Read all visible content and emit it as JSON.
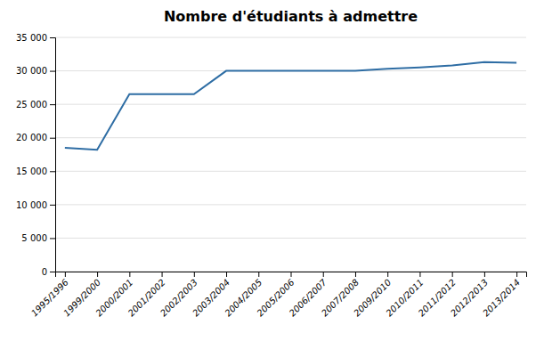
{
  "chart_data": {
    "type": "line",
    "title": "Nombre d'étudiants à admettre",
    "categories": [
      "1995/1996",
      "1999/2000",
      "2000/2001",
      "2001/2002",
      "2002/2003",
      "2003/2004",
      "2004/2005",
      "2005/2006",
      "2006/2007",
      "2007/2008",
      "2009/2010",
      "2010/2011",
      "2011/2012",
      "2012/2013",
      "2013/2014"
    ],
    "values": [
      18500,
      18200,
      26500,
      26500,
      26500,
      30000,
      30000,
      30000,
      30000,
      30000,
      30300,
      30500,
      30800,
      31300,
      31200
    ],
    "color": "#2E6DA4",
    "ylim": [
      0,
      35000
    ],
    "yticks": [
      0,
      {
        "value": 5000,
        "label": "5 000"
      },
      {
        "value": 10000,
        "label": "10 000"
      },
      {
        "value": 15000,
        "label": "15 000"
      },
      {
        "value": 20000,
        "label": "20 000"
      },
      {
        "value": 25000,
        "label": "25 000"
      },
      {
        "value": 30000,
        "label": "30 000"
      },
      {
        "value": 35000,
        "label": "35 000"
      }
    ],
    "grid": true
  }
}
